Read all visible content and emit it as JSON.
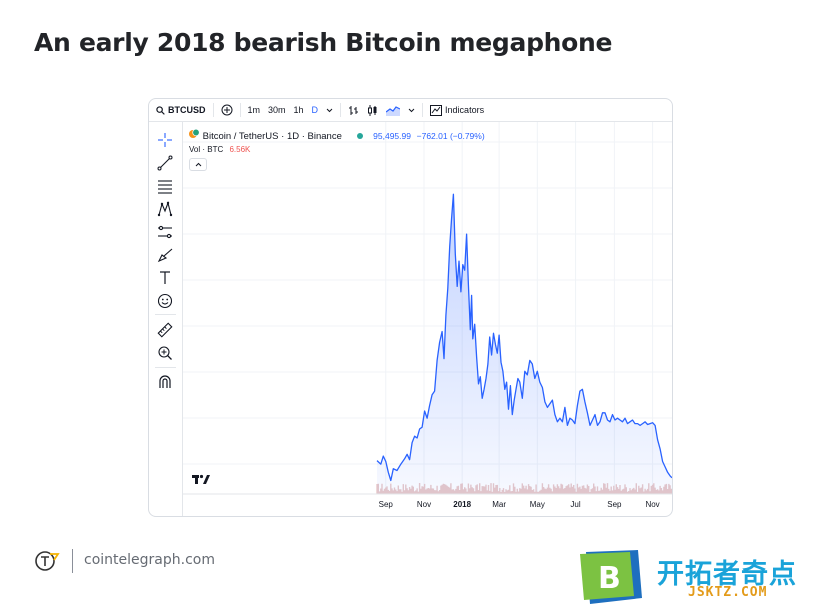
{
  "page": {
    "title": "An early 2018 bearish Bitcoin megaphone"
  },
  "toolbar": {
    "symbol": "BTCUSD",
    "timeframes": [
      "1m",
      "30m",
      "1h",
      "D"
    ],
    "active_timeframe": "D",
    "indicators_label": "Indicators"
  },
  "legend": {
    "instrument": "Bitcoin / TetherUS · 1D · Binance",
    "price": "95,495.99",
    "change": "−762.01 (−0.79%)",
    "vol_label": "Vol · BTC",
    "vol_value": "6.56K"
  },
  "sidebar_tools": [
    "crosshair-icon",
    "trend-line-icon",
    "fib-icon",
    "pattern-icon",
    "projection-icon",
    "brush-icon",
    "text-icon",
    "emoji-icon",
    "ruler-icon",
    "zoom-in-icon",
    "magnet-icon"
  ],
  "footer": {
    "site": "cointelegraph.com"
  },
  "watermark": {
    "brand": "开拓者奇点",
    "sub": "JSKTZ.COM",
    "badge_letter": "B"
  },
  "colors": {
    "line": "#2962ff",
    "accent": "#2962ff",
    "positive": "#26a69a",
    "negative": "#ef5350"
  },
  "chart_data": {
    "type": "area",
    "x_ticks": [
      {
        "label": "Sep",
        "d": 0
      },
      {
        "label": "Nov",
        "d": 61
      },
      {
        "label": "2018",
        "d": 122,
        "bold": true
      },
      {
        "label": "Mar",
        "d": 181
      },
      {
        "label": "May",
        "d": 242
      },
      {
        "label": "Jul",
        "d": 303
      },
      {
        "label": "Sep",
        "d": 365
      },
      {
        "label": "Nov",
        "d": 426
      }
    ],
    "x_range": [
      -14,
      457
    ],
    "y_range": [
      2500,
      22000
    ],
    "y_scale": "linear",
    "series": [
      {
        "points": [
          [
            -14,
            4350
          ],
          [
            -8,
            4150
          ],
          [
            -4,
            4600
          ],
          [
            0,
            4300
          ],
          [
            4,
            3700
          ],
          [
            8,
            3250
          ],
          [
            12,
            3900
          ],
          [
            18,
            3800
          ],
          [
            24,
            4150
          ],
          [
            30,
            4450
          ],
          [
            34,
            4700
          ],
          [
            38,
            4400
          ],
          [
            42,
            5350
          ],
          [
            46,
            5700
          ],
          [
            50,
            5600
          ],
          [
            54,
            6100
          ],
          [
            58,
            6200
          ],
          [
            62,
            7100
          ],
          [
            66,
            6700
          ],
          [
            70,
            7400
          ],
          [
            74,
            8000
          ],
          [
            78,
            8200
          ],
          [
            82,
            9900
          ],
          [
            86,
            10900
          ],
          [
            90,
            11500
          ],
          [
            93,
            10000
          ],
          [
            96,
            12400
          ],
          [
            99,
            13900
          ],
          [
            102,
            16200
          ],
          [
            105,
            17700
          ],
          [
            108,
            19100
          ],
          [
            111,
            15800
          ],
          [
            114,
            14000
          ],
          [
            117,
            15400
          ],
          [
            120,
            13700
          ],
          [
            123,
            15200
          ],
          [
            126,
            14900
          ],
          [
            129,
            16900
          ],
          [
            132,
            14100
          ],
          [
            135,
            11600
          ],
          [
            137,
            13500
          ],
          [
            139,
            11100
          ],
          [
            142,
            11900
          ],
          [
            145,
            10100
          ],
          [
            148,
            8600
          ],
          [
            151,
            9000
          ],
          [
            154,
            7800
          ],
          [
            157,
            8300
          ],
          [
            160,
            8900
          ],
          [
            163,
            9700
          ],
          [
            166,
            11200
          ],
          [
            169,
            10200
          ],
          [
            172,
            11400
          ],
          [
            175,
            10800
          ],
          [
            178,
            10300
          ],
          [
            181,
            11300
          ],
          [
            184,
            9800
          ],
          [
            187,
            9300
          ],
          [
            190,
            8300
          ],
          [
            193,
            8700
          ],
          [
            196,
            7200
          ],
          [
            199,
            8500
          ],
          [
            202,
            6900
          ],
          [
            205,
            7700
          ],
          [
            208,
            8300
          ],
          [
            211,
            8900
          ],
          [
            214,
            8700
          ],
          [
            218,
            7800
          ],
          [
            222,
            9300
          ],
          [
            226,
            9100
          ],
          [
            230,
            9900
          ],
          [
            234,
            9700
          ],
          [
            238,
            8900
          ],
          [
            242,
            9300
          ],
          [
            246,
            8700
          ],
          [
            250,
            8400
          ],
          [
            254,
            7600
          ],
          [
            258,
            7300
          ],
          [
            262,
            7500
          ],
          [
            266,
            7700
          ],
          [
            270,
            6900
          ],
          [
            274,
            6500
          ],
          [
            278,
            6700
          ],
          [
            282,
            6500
          ],
          [
            286,
            7300
          ],
          [
            290,
            6300
          ],
          [
            294,
            6700
          ],
          [
            298,
            6600
          ],
          [
            302,
            6400
          ],
          [
            306,
            7400
          ],
          [
            310,
            8200
          ],
          [
            314,
            8300
          ],
          [
            318,
            7600
          ],
          [
            322,
            7000
          ],
          [
            326,
            6300
          ],
          [
            330,
            6600
          ],
          [
            334,
            6900
          ],
          [
            338,
            6300
          ],
          [
            342,
            6500
          ],
          [
            346,
            7000
          ],
          [
            350,
            7000
          ],
          [
            354,
            6600
          ],
          [
            358,
            6500
          ],
          [
            362,
            6900
          ],
          [
            366,
            6600
          ],
          [
            370,
            6700
          ],
          [
            374,
            6600
          ],
          [
            378,
            6500
          ],
          [
            382,
            6700
          ],
          [
            386,
            6400
          ],
          [
            390,
            6500
          ],
          [
            394,
            6600
          ],
          [
            398,
            6400
          ],
          [
            402,
            6400
          ],
          [
            406,
            6300
          ],
          [
            410,
            6400
          ],
          [
            414,
            6500
          ],
          [
            418,
            6350
          ],
          [
            422,
            6400
          ],
          [
            426,
            6450
          ],
          [
            430,
            6300
          ],
          [
            434,
            5500
          ],
          [
            438,
            5000
          ],
          [
            442,
            4300
          ],
          [
            446,
            4000
          ],
          [
            450,
            3700
          ],
          [
            454,
            3500
          ],
          [
            457,
            3400
          ]
        ]
      }
    ]
  }
}
